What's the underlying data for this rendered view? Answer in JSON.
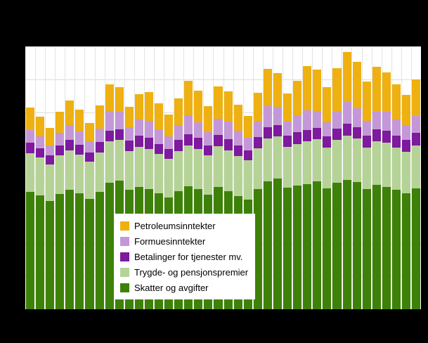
{
  "chart_data": {
    "type": "bar",
    "stacked": true,
    "title": "",
    "xlabel": "",
    "ylabel": "",
    "axis_tick_labels_visible": false,
    "n_bars": 40,
    "ymax": 370,
    "background": "#000000",
    "plot_background": "#ffffff",
    "grid_color": "#dcdcdc",
    "legend_position": "inside bottom-left, white box",
    "series": [
      {
        "key": "skatter",
        "name": "Skatter og avgifter",
        "color": "#3e8109",
        "values": [
          165,
          160,
          152,
          162,
          168,
          163,
          155,
          165,
          178,
          181,
          168,
          172,
          169,
          163,
          157,
          166,
          173,
          169,
          161,
          172,
          166,
          159,
          154,
          169,
          180,
          184,
          171,
          174,
          176,
          180,
          170,
          178,
          182,
          179,
          169,
          175,
          172,
          168,
          163,
          170
        ]
      },
      {
        "key": "trygde",
        "name": "Trygde- og pensjonspremier",
        "color": "#b5d396",
        "values": [
          55,
          54,
          52,
          55,
          56,
          55,
          53,
          56,
          58,
          57,
          55,
          57,
          57,
          56,
          55,
          57,
          58,
          57,
          56,
          58,
          58,
          57,
          56,
          58,
          60,
          59,
          58,
          59,
          60,
          59,
          58,
          60,
          62,
          61,
          59,
          61,
          62,
          60,
          59,
          61
        ]
      },
      {
        "key": "betalinger",
        "name": "Betalinger for tjenester mv.",
        "color": "#7d1a9e",
        "values": [
          14,
          13,
          13,
          14,
          14,
          14,
          13,
          14,
          15,
          15,
          14,
          15,
          15,
          14,
          14,
          15,
          15,
          15,
          14,
          15,
          15,
          15,
          14,
          15,
          16,
          16,
          15,
          16,
          16,
          16,
          15,
          16,
          17,
          16,
          16,
          17,
          17,
          16,
          16,
          17
        ]
      },
      {
        "key": "formues",
        "name": "Formuesinntekter",
        "color": "#c498d8",
        "values": [
          18,
          16,
          14,
          17,
          21,
          18,
          15,
          19,
          28,
          25,
          19,
          23,
          24,
          20,
          17,
          21,
          27,
          22,
          18,
          23,
          25,
          20,
          17,
          22,
          30,
          26,
          20,
          24,
          28,
          24,
          20,
          25,
          31,
          27,
          21,
          25,
          27,
          23,
          20,
          24
        ]
      },
      {
        "key": "petroleum",
        "name": "Petroleumsinntekter",
        "color": "#eeb111",
        "values": [
          32,
          28,
          24,
          30,
          35,
          31,
          26,
          33,
          38,
          35,
          29,
          36,
          41,
          37,
          31,
          38,
          49,
          45,
          37,
          46,
          43,
          37,
          31,
          41,
          52,
          47,
          40,
          49,
          62,
          58,
          50,
          60,
          70,
          65,
          56,
          63,
          55,
          50,
          44,
          52
        ]
      }
    ],
    "legend_order_top_to_bottom": [
      "Petroleumsinntekter",
      "Formuesinntekter",
      "Betalinger for tjenester mv.",
      "Trygde- og pensjonspremier",
      "Skatter og avgifter"
    ]
  }
}
